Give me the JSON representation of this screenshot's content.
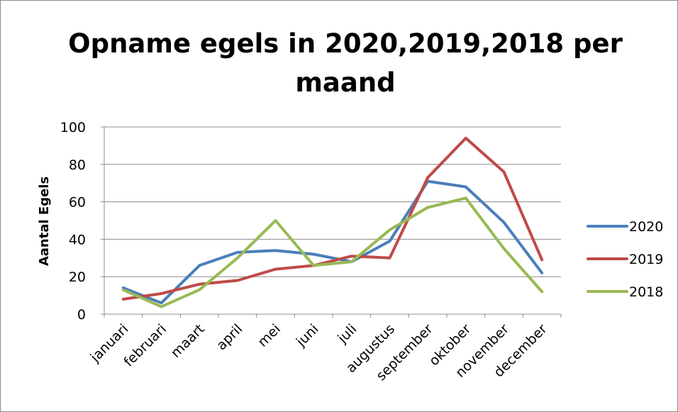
{
  "chart_data": {
    "type": "line",
    "title_lines": [
      "Opname egels in 2020,2019,2018 per",
      "maand"
    ],
    "xlabel": "",
    "ylabel": "Aantal Egels",
    "ylim": [
      0,
      100
    ],
    "yticks": [
      "0",
      "20",
      "40",
      "60",
      "80",
      "100"
    ],
    "grid": true,
    "legend_position": "right",
    "categories": [
      "januari",
      "februari",
      "maart",
      "april",
      "mei",
      "juni",
      "juli",
      "augustus",
      "september",
      "oktober",
      "november",
      "december"
    ],
    "series": [
      {
        "name": "2020",
        "color": "#4a7ebb",
        "values": [
          14,
          6,
          26,
          33,
          34,
          32,
          28,
          39,
          71,
          68,
          49,
          22
        ]
      },
      {
        "name": "2019",
        "color": "#be4b48",
        "values": [
          8,
          11,
          16,
          18,
          24,
          26,
          31,
          30,
          73,
          94,
          76,
          29
        ]
      },
      {
        "name": "2018",
        "color": "#98b954",
        "values": [
          13,
          4,
          13,
          30,
          50,
          26,
          28,
          45,
          57,
          62,
          35,
          12
        ]
      }
    ]
  }
}
